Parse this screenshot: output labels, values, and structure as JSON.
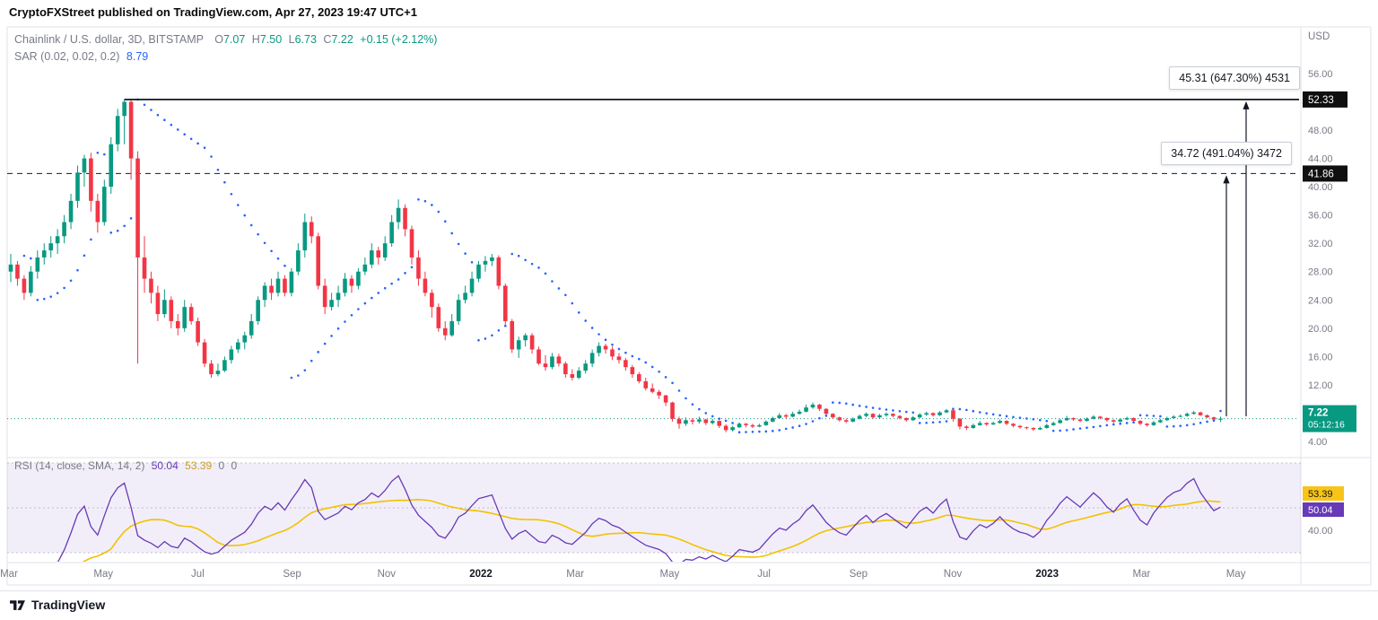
{
  "header": {
    "published": "CryptoFXStreet published on TradingView.com, Apr 27, 2023 19:47 UTC+1"
  },
  "legend": {
    "symbol": "Chainlink / U.S. dollar, 3D, BITSTAMP",
    "o_label": "O",
    "o": "7.07",
    "h_label": "H",
    "h": "7.50",
    "l_label": "L",
    "l": "6.73",
    "c_label": "C",
    "c": "7.22",
    "change": "+0.15 (+2.12%)",
    "sar_label": "SAR (0.02, 0.02, 0.2)",
    "sar_value": "8.79"
  },
  "rsi_pane": {
    "title": "RSI (14, close, SMA, 14, 2)",
    "value": "50.04",
    "sma": "53.39",
    "z1": "0",
    "z2": "0"
  },
  "annotations": {
    "upper": "45.31 (647.30%) 4531",
    "lower": "34.72 (491.04%) 3472"
  },
  "price_axis": {
    "currency": "USD"
  },
  "badges": {
    "high": "52.33",
    "mid": "41.86",
    "last": "7.22",
    "countdown": "05:12:16",
    "rsi_sma": "53.39",
    "rsi_val": "50.04",
    "rsi_axis": "40.00"
  },
  "footer": {
    "brand": "TradingView"
  },
  "colors": {
    "up": "#089981",
    "down": "#f23645",
    "sar": "#2962ff",
    "rsi": "#673ab7",
    "rsi_sma": "#f2c200",
    "rsi_band": "rgba(126,87,194,0.10)",
    "badge_yellow": "#f8c417",
    "axis_text": "#787b86",
    "line_dark": "#131722"
  },
  "chart_data": {
    "type": "candlestick",
    "title": "Chainlink / U.S. dollar, 3D, BITSTAMP",
    "timeframe": "3D",
    "exchange": "BITSTAMP",
    "ohlc_last": {
      "o": 7.07,
      "h": 7.5,
      "l": 6.73,
      "c": 7.22,
      "change": "+0.15 (+2.12%)"
    },
    "ylim": [
      2,
      62
    ],
    "price_ticks": [
      56,
      48,
      44,
      40,
      36,
      32,
      28,
      24,
      20,
      16,
      12,
      4
    ],
    "x_tick_labels": [
      "Mar",
      "May",
      "Jul",
      "Sep",
      "Nov",
      "2022",
      "Mar",
      "May",
      "Jul",
      "Sep",
      "Nov",
      "2023",
      "Mar",
      "May"
    ],
    "levels": {
      "resistance": 52.33,
      "mid": 41.86,
      "last": 7.22
    },
    "range_projections": [
      {
        "label": "45.31 (647.30%) 4531",
        "target": 52.33
      },
      {
        "label": "34.72 (491.04%) 3472",
        "target": 41.86
      }
    ],
    "sar": {
      "params": [
        0.02,
        0.02,
        0.2
      ],
      "last": 8.79
    },
    "rsi": {
      "period": 14,
      "smoothing": "SMA 14",
      "last": 50.04,
      "sma_last": 53.39,
      "bands": [
        30,
        50,
        70
      ],
      "axis_tick": 40
    },
    "candles": [
      [
        28,
        30.5,
        26.5,
        29
      ],
      [
        29,
        29.5,
        26,
        27
      ],
      [
        27,
        27.5,
        24,
        25
      ],
      [
        25,
        28.8,
        24.5,
        28
      ],
      [
        28,
        31,
        27,
        30
      ],
      [
        30,
        32,
        29,
        31
      ],
      [
        31,
        33,
        30,
        32
      ],
      [
        32,
        34,
        30.5,
        33
      ],
      [
        33,
        36,
        32,
        35
      ],
      [
        35,
        39,
        34,
        38
      ],
      [
        38,
        43,
        37,
        42
      ],
      [
        42,
        44.5,
        40,
        44
      ],
      [
        44,
        44.8,
        36.5,
        38
      ],
      [
        38,
        39,
        33.5,
        35
      ],
      [
        35,
        41,
        34.5,
        40
      ],
      [
        40,
        47,
        39,
        46
      ],
      [
        46,
        51,
        45,
        50
      ],
      [
        50,
        52.33,
        46,
        52
      ],
      [
        52,
        52.3,
        41,
        44
      ],
      [
        44,
        45,
        15,
        30
      ],
      [
        30,
        33,
        25,
        27
      ],
      [
        27,
        28,
        23.5,
        25
      ],
      [
        25,
        26,
        21,
        22
      ],
      [
        22,
        25.5,
        21.5,
        24
      ],
      [
        24,
        24.5,
        20,
        21
      ],
      [
        21,
        22,
        19,
        20
      ],
      [
        20,
        24,
        19.5,
        23
      ],
      [
        23,
        23.5,
        20.5,
        21
      ],
      [
        21,
        21.5,
        17.5,
        18
      ],
      [
        18,
        18.5,
        14.5,
        15
      ],
      [
        15,
        15.5,
        13,
        13.5
      ],
      [
        13.5,
        15,
        13.2,
        14
      ],
      [
        14,
        16,
        13.8,
        15.5
      ],
      [
        15.5,
        17.5,
        15,
        17
      ],
      [
        17,
        18.5,
        16.5,
        18
      ],
      [
        18,
        19.5,
        17,
        19
      ],
      [
        19,
        22,
        18.5,
        21
      ],
      [
        21,
        24.5,
        20.5,
        24
      ],
      [
        24,
        26.5,
        23,
        26
      ],
      [
        26,
        27,
        24,
        25
      ],
      [
        25,
        28,
        24.5,
        27
      ],
      [
        27,
        27.5,
        24.5,
        25
      ],
      [
        25,
        28.5,
        24.5,
        28
      ],
      [
        28,
        32,
        27.5,
        31
      ],
      [
        31,
        36.2,
        30,
        35
      ],
      [
        35,
        35.8,
        32,
        33
      ],
      [
        33,
        33.5,
        25.5,
        26
      ],
      [
        26,
        27,
        22,
        23
      ],
      [
        23,
        25,
        22.5,
        24
      ],
      [
        24,
        26,
        23,
        25
      ],
      [
        25,
        27.8,
        24.5,
        27
      ],
      [
        27,
        27.5,
        25,
        26
      ],
      [
        26,
        28.5,
        25.5,
        28
      ],
      [
        28,
        30,
        27.5,
        29
      ],
      [
        29,
        32,
        28.5,
        31
      ],
      [
        31,
        31.5,
        29,
        30
      ],
      [
        30,
        33,
        29.5,
        32
      ],
      [
        32,
        36,
        31.5,
        35
      ],
      [
        35,
        38.2,
        34,
        37
      ],
      [
        37,
        37.5,
        33,
        34
      ],
      [
        34,
        34.5,
        29,
        30
      ],
      [
        30,
        31,
        26,
        27
      ],
      [
        27,
        28,
        24.5,
        25
      ],
      [
        25,
        25.5,
        21.5,
        23
      ],
      [
        23,
        23.5,
        19.5,
        20
      ],
      [
        20,
        21,
        18.3,
        19
      ],
      [
        19,
        22,
        18.8,
        21
      ],
      [
        21,
        24.8,
        20.5,
        24
      ],
      [
        24,
        26,
        23.5,
        25
      ],
      [
        25,
        28,
        24.5,
        27
      ],
      [
        27,
        29.5,
        26.5,
        29
      ],
      [
        29,
        30.2,
        28,
        29.5
      ],
      [
        29.5,
        30.5,
        28.8,
        30
      ],
      [
        30,
        30.3,
        25.5,
        26
      ],
      [
        26,
        26.3,
        20.5,
        21
      ],
      [
        21,
        21.3,
        16.5,
        17
      ],
      [
        17,
        18.8,
        15.8,
        18.3
      ],
      [
        18.3,
        19.3,
        17.4,
        19
      ],
      [
        19,
        19.3,
        16.4,
        17
      ],
      [
        17,
        17.4,
        14.8,
        15
      ],
      [
        15,
        16.2,
        14,
        14.5
      ],
      [
        14.5,
        16.5,
        14.2,
        16
      ],
      [
        16,
        16.4,
        14.6,
        15
      ],
      [
        15,
        15.3,
        13,
        13.5
      ],
      [
        13.5,
        14.2,
        12.6,
        13
      ],
      [
        13,
        14.5,
        12.8,
        14
      ],
      [
        14,
        15.5,
        13.6,
        15
      ],
      [
        15,
        17,
        14.5,
        16.5
      ],
      [
        16.5,
        18,
        16,
        17.5
      ],
      [
        17.5,
        17.8,
        16.4,
        17
      ],
      [
        17,
        17.4,
        15.5,
        16
      ],
      [
        16,
        16.5,
        15,
        15.5
      ],
      [
        15.5,
        15.8,
        14,
        14.5
      ],
      [
        14.5,
        14.8,
        13,
        13.5
      ],
      [
        13.5,
        13.8,
        12.2,
        12.5
      ],
      [
        12.5,
        13,
        11.2,
        11.5
      ],
      [
        11.5,
        12.2,
        10.8,
        11
      ],
      [
        11,
        11.3,
        10,
        10.5
      ],
      [
        10.5,
        10.6,
        9,
        9.5
      ],
      [
        9.5,
        9.6,
        6.8,
        7.2
      ],
      [
        7.2,
        7.5,
        5.8,
        6.5
      ],
      [
        6.5,
        7.4,
        6.2,
        7
      ],
      [
        7,
        7.3,
        6.4,
        6.8
      ],
      [
        6.8,
        7.5,
        6.5,
        7.1
      ],
      [
        7.1,
        7.2,
        6.3,
        6.6
      ],
      [
        6.6,
        7.2,
        6.4,
        6.9
      ],
      [
        6.9,
        7,
        5.9,
        6.2
      ],
      [
        6.2,
        6.4,
        5.3,
        5.6
      ],
      [
        5.6,
        6.2,
        5.4,
        6
      ],
      [
        6,
        6.7,
        5.9,
        6.5
      ],
      [
        6.5,
        6.6,
        6,
        6.3
      ],
      [
        6.3,
        6.5,
        5.9,
        6.1
      ],
      [
        6.1,
        6.5,
        6,
        6.3
      ],
      [
        6.3,
        7,
        6.2,
        6.8
      ],
      [
        6.8,
        7.5,
        6.7,
        7.3
      ],
      [
        7.3,
        8,
        7.2,
        7.7
      ],
      [
        7.7,
        7.9,
        7.2,
        7.5
      ],
      [
        7.5,
        8.2,
        7.4,
        7.9
      ],
      [
        7.9,
        8.5,
        7.8,
        8.2
      ],
      [
        8.2,
        9.2,
        8.1,
        8.8
      ],
      [
        8.8,
        9.5,
        8.6,
        9.2
      ],
      [
        9.2,
        9.3,
        8.3,
        8.6
      ],
      [
        8.6,
        8.7,
        7.7,
        7.9
      ],
      [
        7.9,
        8,
        7.2,
        7.4
      ],
      [
        7.4,
        7.5,
        6.8,
        7
      ],
      [
        7,
        7.2,
        6.6,
        6.8
      ],
      [
        6.8,
        7.4,
        6.7,
        7.2
      ],
      [
        7.2,
        7.8,
        7.1,
        7.6
      ],
      [
        7.6,
        8.1,
        7.4,
        7.9
      ],
      [
        7.9,
        8,
        7.2,
        7.4
      ],
      [
        7.4,
        7.9,
        7.3,
        7.7
      ],
      [
        7.7,
        8.1,
        7.5,
        7.9
      ],
      [
        7.9,
        8,
        7.4,
        7.6
      ],
      [
        7.6,
        7.7,
        7.1,
        7.3
      ],
      [
        7.3,
        7.4,
        6.8,
        7
      ],
      [
        7,
        7.6,
        6.9,
        7.4
      ],
      [
        7.4,
        8,
        7.3,
        7.8
      ],
      [
        7.8,
        8.2,
        7.6,
        8
      ],
      [
        8,
        8.1,
        7.5,
        7.7
      ],
      [
        7.7,
        8.3,
        7.6,
        8.1
      ],
      [
        8.1,
        8.6,
        8,
        8.4
      ],
      [
        8.4,
        8.5,
        6.8,
        7.2
      ],
      [
        7.2,
        7.3,
        5.7,
        6.1
      ],
      [
        6.1,
        6.3,
        5.6,
        5.9
      ],
      [
        5.9,
        6.5,
        5.8,
        6.3
      ],
      [
        6.3,
        6.9,
        6.2,
        6.6
      ],
      [
        6.6,
        6.7,
        6.2,
        6.4
      ],
      [
        6.4,
        6.8,
        6.3,
        6.6
      ],
      [
        6.6,
        7.1,
        6.5,
        6.9
      ],
      [
        6.9,
        7,
        6.3,
        6.5
      ],
      [
        6.5,
        6.6,
        6,
        6.2
      ],
      [
        6.2,
        6.3,
        5.8,
        6
      ],
      [
        6,
        6.1,
        5.7,
        5.9
      ],
      [
        5.9,
        6,
        5.5,
        5.7
      ],
      [
        5.7,
        6.1,
        5.6,
        5.9
      ],
      [
        5.9,
        6.5,
        5.8,
        6.3
      ],
      [
        6.3,
        6.8,
        6.2,
        6.6
      ],
      [
        6.6,
        7.2,
        6.5,
        7
      ],
      [
        7,
        7.6,
        6.9,
        7.3
      ],
      [
        7.3,
        7.4,
        6.9,
        7.1
      ],
      [
        7.1,
        7.2,
        6.7,
        6.9
      ],
      [
        6.9,
        7.4,
        6.8,
        7.2
      ],
      [
        7.2,
        7.7,
        7.1,
        7.5
      ],
      [
        7.5,
        7.6,
        7.1,
        7.3
      ],
      [
        7.3,
        7.4,
        6.8,
        7
      ],
      [
        7,
        7.1,
        6.6,
        6.8
      ],
      [
        6.8,
        7.3,
        6.7,
        7.1
      ],
      [
        7.1,
        7.5,
        7,
        7.3
      ],
      [
        7.3,
        7.4,
        6.7,
        6.9
      ],
      [
        6.9,
        7,
        6.3,
        6.5
      ],
      [
        6.5,
        6.6,
        6.1,
        6.3
      ],
      [
        6.3,
        6.9,
        6.2,
        6.7
      ],
      [
        6.7,
        7.2,
        6.6,
        7
      ],
      [
        7,
        7.5,
        6.9,
        7.3
      ],
      [
        7.3,
        7.7,
        7.2,
        7.5
      ],
      [
        7.5,
        7.8,
        7.4,
        7.6
      ],
      [
        7.6,
        8.1,
        7.5,
        7.9
      ],
      [
        7.9,
        8.3,
        7.8,
        8.1
      ],
      [
        8.1,
        8.2,
        7.6,
        7.7
      ],
      [
        7.7,
        7.8,
        7.3,
        7.4
      ],
      [
        7.4,
        7.5,
        7,
        7.1
      ],
      [
        7.07,
        7.5,
        6.73,
        7.22
      ]
    ]
  }
}
